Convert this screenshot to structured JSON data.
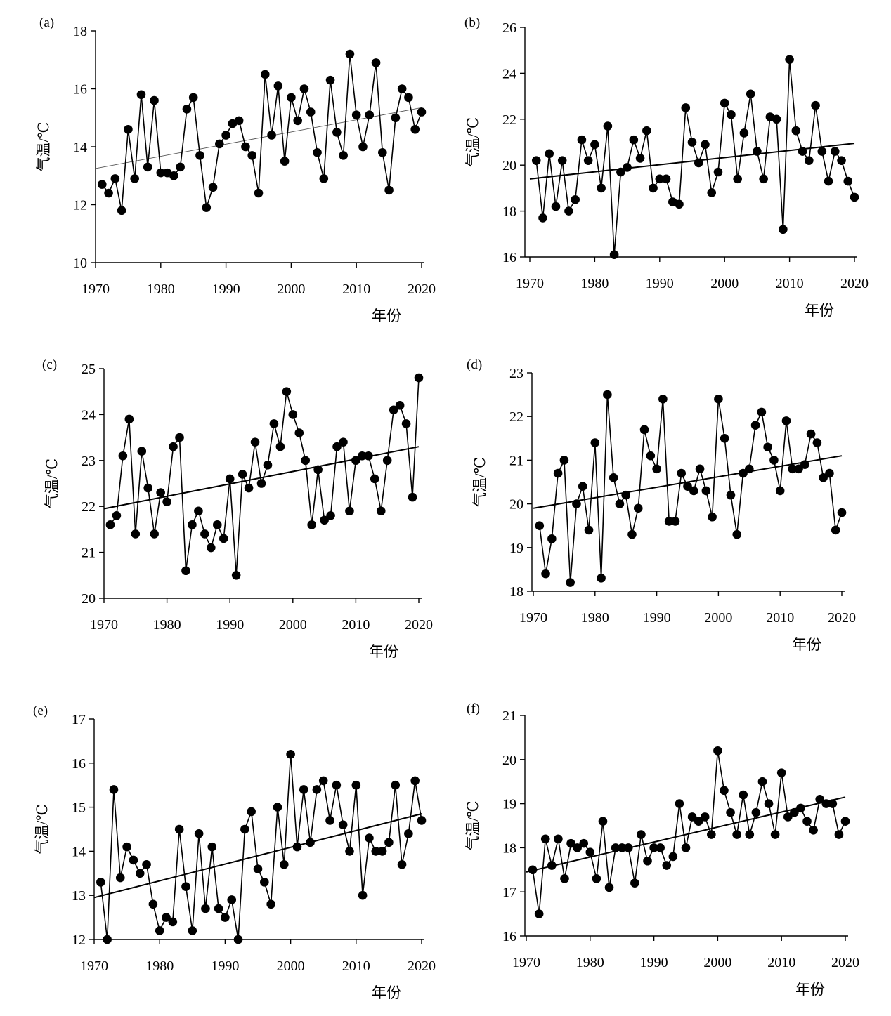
{
  "chart_data": [
    {
      "panel_label": "(a)",
      "type": "line",
      "xlabel": "年份",
      "ylabel": "气温/℃",
      "xlim": [
        1970,
        2020
      ],
      "ylim": [
        10,
        18
      ],
      "xticks": [
        1970,
        1980,
        1990,
        2000,
        2010,
        2020
      ],
      "yticks": [
        10,
        12,
        14,
        16,
        18
      ],
      "trend_line_weight": "thin",
      "x": [
        1971,
        1972,
        1973,
        1974,
        1975,
        1976,
        1977,
        1978,
        1979,
        1980,
        1981,
        1982,
        1983,
        1984,
        1985,
        1986,
        1987,
        1988,
        1989,
        1990,
        1991,
        1992,
        1993,
        1994,
        1995,
        1996,
        1997,
        1998,
        1999,
        2000,
        2001,
        2002,
        2003,
        2004,
        2005,
        2006,
        2007,
        2008,
        2009,
        2010,
        2011,
        2012,
        2013,
        2014,
        2015,
        2016,
        2017,
        2018,
        2019,
        2020
      ],
      "y": [
        12.7,
        12.4,
        12.9,
        11.8,
        14.6,
        12.9,
        15.8,
        13.3,
        15.6,
        13.1,
        13.1,
        13.0,
        13.3,
        15.3,
        15.7,
        13.7,
        11.9,
        12.6,
        14.1,
        14.4,
        14.8,
        14.9,
        14.0,
        13.7,
        12.4,
        16.5,
        14.4,
        16.1,
        13.5,
        15.7,
        14.9,
        16.0,
        15.2,
        13.8,
        12.9,
        16.3,
        14.5,
        13.7,
        17.2,
        15.1,
        14.0,
        15.1,
        16.9,
        13.8,
        12.5,
        15.0,
        16.0,
        15.7,
        14.6,
        15.2
      ],
      "trend": {
        "x": [
          1970,
          2020
        ],
        "y": [
          13.25,
          15.35
        ]
      }
    },
    {
      "panel_label": "(b)",
      "type": "line",
      "xlabel": "年份",
      "ylabel": "气温/℃",
      "xlim": [
        1970,
        2020
      ],
      "ylim": [
        16,
        26
      ],
      "xticks": [
        1970,
        1980,
        1990,
        2000,
        2010,
        2020
      ],
      "yticks": [
        16,
        18,
        20,
        22,
        24,
        26
      ],
      "trend_line_weight": "normal",
      "x": [
        1971,
        1972,
        1973,
        1974,
        1975,
        1976,
        1977,
        1978,
        1979,
        1980,
        1981,
        1982,
        1983,
        1984,
        1985,
        1986,
        1987,
        1988,
        1989,
        1990,
        1991,
        1992,
        1993,
        1994,
        1995,
        1996,
        1997,
        1998,
        1999,
        2000,
        2001,
        2002,
        2003,
        2004,
        2005,
        2006,
        2007,
        2008,
        2009,
        2010,
        2011,
        2012,
        2013,
        2014,
        2015,
        2016,
        2017,
        2018,
        2019,
        2020
      ],
      "y": [
        20.2,
        17.7,
        20.5,
        18.2,
        20.2,
        18.0,
        18.5,
        21.1,
        20.2,
        20.9,
        19.0,
        21.7,
        16.1,
        19.7,
        19.9,
        21.1,
        20.3,
        21.5,
        19.0,
        19.4,
        19.4,
        18.4,
        18.3,
        22.5,
        21.0,
        20.1,
        20.9,
        18.8,
        19.7,
        22.7,
        22.2,
        19.4,
        21.4,
        23.1,
        20.6,
        19.4,
        22.1,
        22.0,
        17.2,
        24.6,
        21.5,
        20.6,
        20.2,
        22.6,
        20.6,
        19.3,
        20.6,
        20.2,
        19.3,
        18.6
      ],
      "trend": {
        "x": [
          1970,
          2020
        ],
        "y": [
          19.4,
          20.95
        ]
      }
    },
    {
      "panel_label": "(c)",
      "type": "line",
      "xlabel": "年份",
      "ylabel": "气温/℃",
      "xlim": [
        1970,
        2020
      ],
      "ylim": [
        20,
        25
      ],
      "xticks": [
        1970,
        1980,
        1990,
        2000,
        2010,
        2020
      ],
      "yticks": [
        20,
        21,
        22,
        23,
        24,
        25
      ],
      "trend_line_weight": "normal",
      "x": [
        1971,
        1972,
        1973,
        1974,
        1975,
        1976,
        1977,
        1978,
        1979,
        1980,
        1981,
        1982,
        1983,
        1984,
        1985,
        1986,
        1987,
        1988,
        1989,
        1990,
        1991,
        1992,
        1993,
        1994,
        1995,
        1996,
        1997,
        1998,
        1999,
        2000,
        2001,
        2002,
        2003,
        2004,
        2005,
        2006,
        2007,
        2008,
        2009,
        2010,
        2011,
        2012,
        2013,
        2014,
        2015,
        2016,
        2017,
        2018,
        2019,
        2020
      ],
      "y": [
        21.6,
        21.8,
        23.1,
        23.9,
        21.4,
        23.2,
        22.4,
        21.4,
        22.3,
        22.1,
        23.3,
        23.5,
        20.6,
        21.6,
        21.9,
        21.4,
        21.1,
        21.6,
        21.3,
        22.6,
        20.5,
        22.7,
        22.4,
        23.4,
        22.5,
        22.9,
        23.8,
        23.3,
        24.5,
        24.0,
        23.6,
        23.0,
        21.6,
        22.8,
        21.7,
        21.8,
        23.3,
        23.4,
        21.9,
        23.0,
        23.1,
        23.1,
        22.6,
        21.9,
        23.0,
        24.1,
        24.2,
        23.8,
        22.2,
        24.8
      ],
      "trend": {
        "x": [
          1970,
          2020
        ],
        "y": [
          21.95,
          23.3
        ]
      }
    },
    {
      "panel_label": "(d)",
      "type": "line",
      "xlabel": "年份",
      "ylabel": "气温/℃",
      "xlim": [
        1970,
        2020
      ],
      "ylim": [
        18,
        23
      ],
      "xticks": [
        1970,
        1980,
        1990,
        2000,
        2010,
        2020
      ],
      "yticks": [
        18,
        19,
        20,
        21,
        22,
        23
      ],
      "trend_line_weight": "normal",
      "x": [
        1971,
        1972,
        1973,
        1974,
        1975,
        1976,
        1977,
        1978,
        1979,
        1980,
        1981,
        1982,
        1983,
        1984,
        1985,
        1986,
        1987,
        1988,
        1989,
        1990,
        1991,
        1992,
        1993,
        1994,
        1995,
        1996,
        1997,
        1998,
        1999,
        2000,
        2001,
        2002,
        2003,
        2004,
        2005,
        2006,
        2007,
        2008,
        2009,
        2010,
        2011,
        2012,
        2013,
        2014,
        2015,
        2016,
        2017,
        2018,
        2019,
        2020
      ],
      "y": [
        19.5,
        18.4,
        19.2,
        20.7,
        21.0,
        18.2,
        20.0,
        20.4,
        19.4,
        21.4,
        18.3,
        22.5,
        20.6,
        20.0,
        20.2,
        19.3,
        19.9,
        21.7,
        21.1,
        20.8,
        22.4,
        19.6,
        19.6,
        20.7,
        20.4,
        20.3,
        20.8,
        20.3,
        19.7,
        22.4,
        21.5,
        20.2,
        19.3,
        20.7,
        20.8,
        21.8,
        22.1,
        21.3,
        21.0,
        20.3,
        21.9,
        20.8,
        20.8,
        20.9,
        21.6,
        21.4,
        20.6,
        20.7,
        19.4,
        19.8
      ],
      "trend": {
        "x": [
          1970,
          2020
        ],
        "y": [
          19.9,
          21.1
        ]
      }
    },
    {
      "panel_label": "(e)",
      "type": "line",
      "xlabel": "年份",
      "ylabel": "气温/℃",
      "xlim": [
        1970,
        2020
      ],
      "ylim": [
        12,
        17
      ],
      "xticks": [
        1970,
        1980,
        1990,
        2000,
        2010,
        2020
      ],
      "yticks": [
        12,
        13,
        14,
        15,
        16,
        17
      ],
      "trend_line_weight": "normal",
      "x": [
        1971,
        1972,
        1973,
        1974,
        1975,
        1976,
        1977,
        1978,
        1979,
        1980,
        1981,
        1982,
        1983,
        1984,
        1985,
        1986,
        1987,
        1988,
        1989,
        1990,
        1991,
        1992,
        1993,
        1994,
        1995,
        1996,
        1997,
        1998,
        1999,
        2000,
        2001,
        2002,
        2003,
        2004,
        2005,
        2006,
        2007,
        2008,
        2009,
        2010,
        2011,
        2012,
        2013,
        2014,
        2015,
        2016,
        2017,
        2018,
        2019,
        2020
      ],
      "y": [
        13.3,
        12.0,
        15.4,
        13.4,
        14.1,
        13.8,
        13.5,
        13.7,
        12.8,
        12.2,
        12.5,
        12.4,
        14.5,
        13.2,
        12.2,
        14.4,
        12.7,
        14.1,
        12.7,
        12.5,
        12.9,
        12.0,
        14.5,
        14.9,
        13.6,
        13.3,
        12.8,
        15.0,
        13.7,
        16.2,
        14.1,
        15.4,
        14.2,
        15.4,
        15.6,
        14.7,
        15.5,
        14.6,
        14.0,
        15.5,
        13.0,
        14.3,
        14.0,
        14.0,
        14.2,
        15.5,
        13.7,
        14.4,
        15.6,
        14.7
      ],
      "trend": {
        "x": [
          1970,
          2020
        ],
        "y": [
          12.95,
          14.85
        ]
      }
    },
    {
      "panel_label": "(f)",
      "type": "line",
      "xlabel": "年份",
      "ylabel": "气温/℃",
      "xlim": [
        1970,
        2020
      ],
      "ylim": [
        16,
        21
      ],
      "xticks": [
        1970,
        1980,
        1990,
        2000,
        2010,
        2020
      ],
      "yticks": [
        16,
        17,
        18,
        19,
        20,
        21
      ],
      "trend_line_weight": "normal",
      "x": [
        1971,
        1972,
        1973,
        1974,
        1975,
        1976,
        1977,
        1978,
        1979,
        1980,
        1981,
        1982,
        1983,
        1984,
        1985,
        1986,
        1987,
        1988,
        1989,
        1990,
        1991,
        1992,
        1993,
        1994,
        1995,
        1996,
        1997,
        1998,
        1999,
        2000,
        2001,
        2002,
        2003,
        2004,
        2005,
        2006,
        2007,
        2008,
        2009,
        2010,
        2011,
        2012,
        2013,
        2014,
        2015,
        2016,
        2017,
        2018,
        2019,
        2020
      ],
      "y": [
        17.5,
        16.5,
        18.2,
        17.6,
        18.2,
        17.3,
        18.1,
        18.0,
        18.1,
        17.9,
        17.3,
        18.6,
        17.1,
        18.0,
        18.0,
        18.0,
        17.2,
        18.3,
        17.7,
        18.0,
        18.0,
        17.6,
        17.8,
        19.0,
        18.0,
        18.7,
        18.6,
        18.7,
        18.3,
        20.2,
        19.3,
        18.8,
        18.3,
        19.2,
        18.3,
        18.8,
        19.5,
        19.0,
        18.3,
        19.7,
        18.7,
        18.8,
        18.9,
        18.6,
        18.4,
        19.1,
        19.0,
        19.0,
        18.3,
        18.6
      ],
      "trend": {
        "x": [
          1970,
          2020
        ],
        "y": [
          17.45,
          19.15
        ]
      }
    }
  ]
}
